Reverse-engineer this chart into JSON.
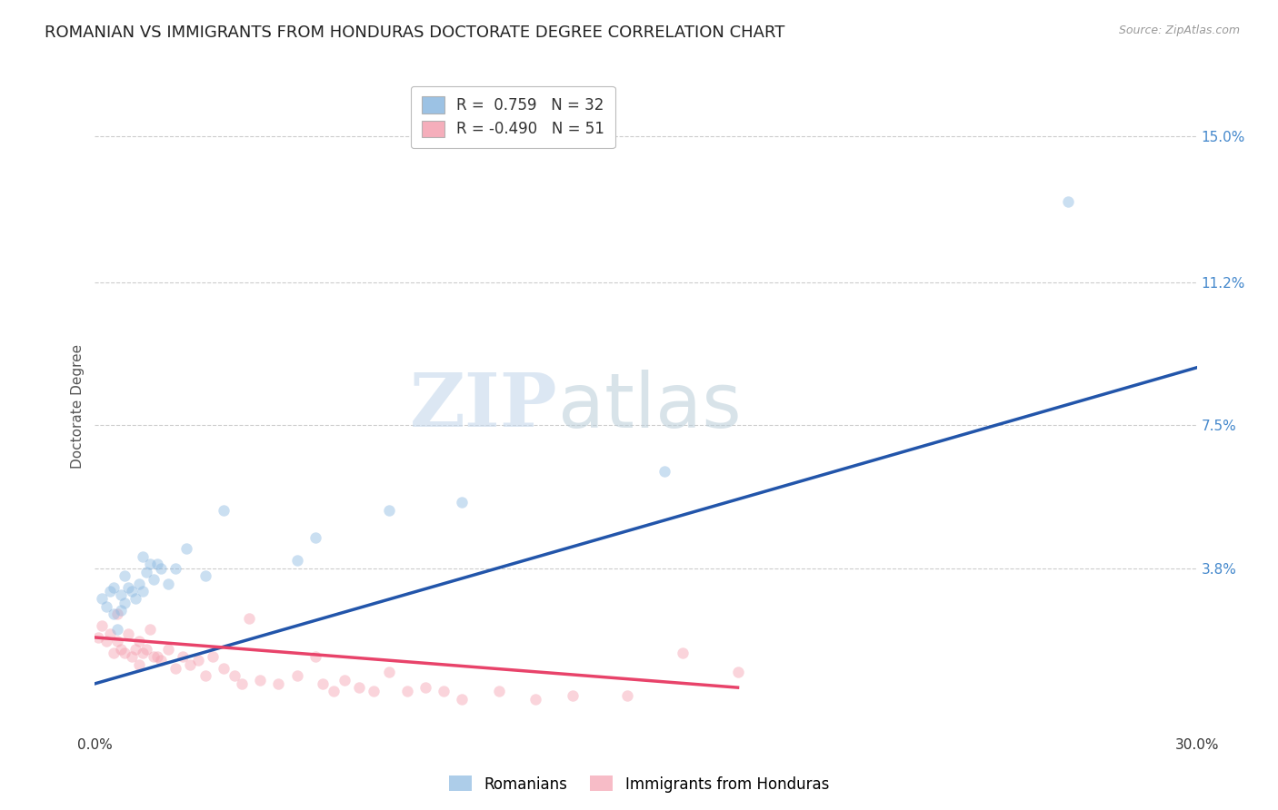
{
  "title": "ROMANIAN VS IMMIGRANTS FROM HONDURAS DOCTORATE DEGREE CORRELATION CHART",
  "source": "Source: ZipAtlas.com",
  "ylabel": "Doctorate Degree",
  "xlim": [
    0.0,
    0.3
  ],
  "ylim": [
    -0.005,
    0.165
  ],
  "xticklabels": [
    "0.0%",
    "30.0%"
  ],
  "ytick_positions": [
    0.038,
    0.075,
    0.112,
    0.15
  ],
  "ytick_labels": [
    "3.8%",
    "7.5%",
    "11.2%",
    "15.0%"
  ],
  "blue_color": "#8BB8E0",
  "pink_color": "#F4A0B0",
  "blue_line_color": "#2255AA",
  "pink_line_color": "#E8436A",
  "watermark_zip": "ZIP",
  "watermark_atlas": "atlas",
  "background_color": "#FFFFFF",
  "grid_color": "#CCCCCC",
  "blue_scatter_x": [
    0.002,
    0.003,
    0.004,
    0.005,
    0.005,
    0.006,
    0.007,
    0.007,
    0.008,
    0.008,
    0.009,
    0.01,
    0.011,
    0.012,
    0.013,
    0.013,
    0.014,
    0.015,
    0.016,
    0.017,
    0.018,
    0.02,
    0.022,
    0.025,
    0.03,
    0.035,
    0.055,
    0.06,
    0.08,
    0.1,
    0.155,
    0.265
  ],
  "blue_scatter_y": [
    0.03,
    0.028,
    0.032,
    0.026,
    0.033,
    0.022,
    0.027,
    0.031,
    0.029,
    0.036,
    0.033,
    0.032,
    0.03,
    0.034,
    0.032,
    0.041,
    0.037,
    0.039,
    0.035,
    0.039,
    0.038,
    0.034,
    0.038,
    0.043,
    0.036,
    0.053,
    0.04,
    0.046,
    0.053,
    0.055,
    0.063,
    0.133
  ],
  "pink_scatter_x": [
    0.001,
    0.002,
    0.003,
    0.004,
    0.005,
    0.006,
    0.006,
    0.007,
    0.008,
    0.009,
    0.01,
    0.011,
    0.012,
    0.012,
    0.013,
    0.014,
    0.015,
    0.016,
    0.017,
    0.018,
    0.02,
    0.022,
    0.024,
    0.026,
    0.028,
    0.03,
    0.032,
    0.035,
    0.038,
    0.04,
    0.042,
    0.045,
    0.05,
    0.055,
    0.06,
    0.062,
    0.065,
    0.068,
    0.072,
    0.076,
    0.08,
    0.085,
    0.09,
    0.095,
    0.1,
    0.11,
    0.12,
    0.13,
    0.145,
    0.16,
    0.175
  ],
  "pink_scatter_y": [
    0.02,
    0.023,
    0.019,
    0.021,
    0.016,
    0.019,
    0.026,
    0.017,
    0.016,
    0.021,
    0.015,
    0.017,
    0.013,
    0.019,
    0.016,
    0.017,
    0.022,
    0.015,
    0.015,
    0.014,
    0.017,
    0.012,
    0.015,
    0.013,
    0.014,
    0.01,
    0.015,
    0.012,
    0.01,
    0.008,
    0.025,
    0.009,
    0.008,
    0.01,
    0.015,
    0.008,
    0.006,
    0.009,
    0.007,
    0.006,
    0.011,
    0.006,
    0.007,
    0.006,
    0.004,
    0.006,
    0.004,
    0.005,
    0.005,
    0.016,
    0.011
  ],
  "blue_line_x": [
    0.0,
    0.3
  ],
  "blue_line_y": [
    0.008,
    0.09
  ],
  "pink_line_x": [
    0.0,
    0.175
  ],
  "pink_line_y": [
    0.02,
    0.007
  ],
  "title_fontsize": 13,
  "axis_label_fontsize": 11,
  "tick_fontsize": 11,
  "legend_fontsize": 12,
  "scatter_size": 80,
  "scatter_alpha": 0.45,
  "line_width": 2.5
}
